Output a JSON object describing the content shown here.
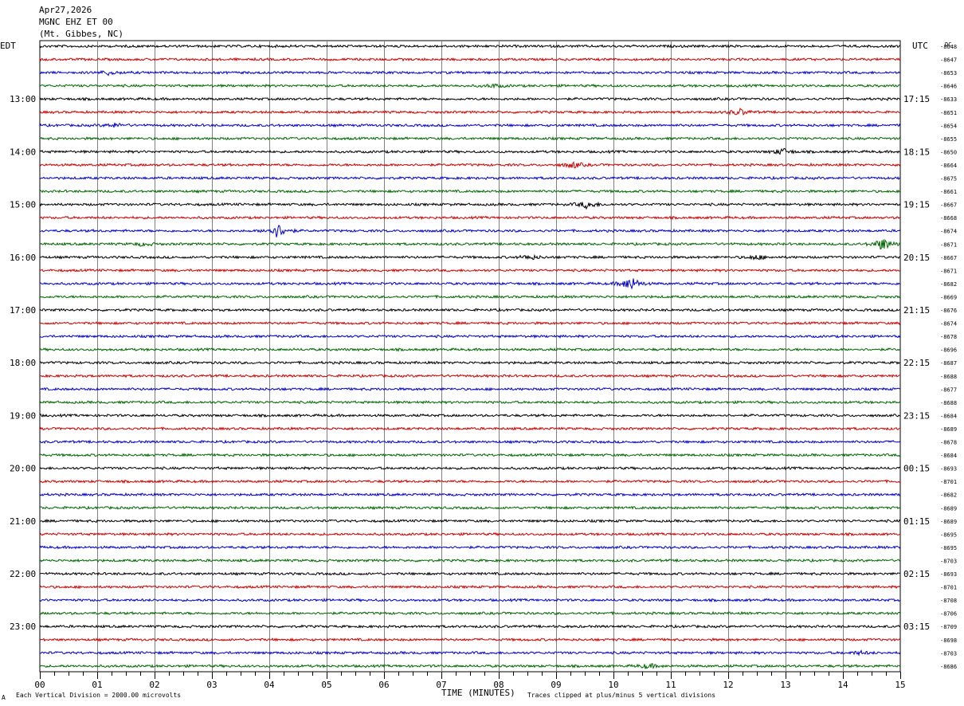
{
  "header": {
    "line1": "Apr27,2026",
    "line2": "MGNC EHZ ET 00",
    "line3": "(Mt. Gibbes, NC)"
  },
  "left_tz": "EDT",
  "right_tz": "UTC",
  "dc_header": "DC",
  "footer": {
    "scale_note": "Each Vertical Division = 2000.00 microvolts",
    "clip_note": "Traces clipped at plus/minus 5 vertical divisions",
    "corner_mark": "A"
  },
  "colors": {
    "cycle": [
      "#000000",
      "#cc0000",
      "#0000cc",
      "#006600"
    ],
    "grid": "#808080"
  },
  "chart_data": {
    "type": "line",
    "xlabel": "TIME (MINUTES)",
    "xlim": [
      0,
      15
    ],
    "x_ticks": [
      "00",
      "01",
      "02",
      "03",
      "04",
      "05",
      "06",
      "07",
      "08",
      "09",
      "10",
      "11",
      "12",
      "13",
      "14",
      "15"
    ],
    "row_count": 48,
    "left_hour_labels": [
      {
        "row": 4,
        "label": "13:00"
      },
      {
        "row": 8,
        "label": "14:00"
      },
      {
        "row": 12,
        "label": "15:00"
      },
      {
        "row": 16,
        "label": "16:00"
      },
      {
        "row": 20,
        "label": "17:00"
      },
      {
        "row": 24,
        "label": "18:00"
      },
      {
        "row": 28,
        "label": "19:00"
      },
      {
        "row": 32,
        "label": "20:00"
      },
      {
        "row": 36,
        "label": "21:00"
      },
      {
        "row": 40,
        "label": "22:00"
      },
      {
        "row": 44,
        "label": "23:00"
      }
    ],
    "right_hour_labels": [
      {
        "row": 4,
        "label": "17:15"
      },
      {
        "row": 8,
        "label": "18:15"
      },
      {
        "row": 12,
        "label": "19:15"
      },
      {
        "row": 16,
        "label": "20:15"
      },
      {
        "row": 20,
        "label": "21:15"
      },
      {
        "row": 24,
        "label": "22:15"
      },
      {
        "row": 28,
        "label": "23:15"
      },
      {
        "row": 32,
        "label": "00:15"
      },
      {
        "row": 36,
        "label": "01:15"
      },
      {
        "row": 40,
        "label": "02:15"
      },
      {
        "row": 44,
        "label": "03:15"
      }
    ],
    "dc_offsets": [
      "-8648",
      "-8647",
      "-8653",
      "-8646",
      "-8633",
      "-8651",
      "-8654",
      "-8655",
      "-8650",
      "-8664",
      "-8675",
      "-8661",
      "-8667",
      "-8668",
      "-8674",
      "-8671",
      "-8667",
      "-8671",
      "-8682",
      "-8669",
      "-8676",
      "-8674",
      "-8678",
      "-8696",
      "-8687",
      "-8688",
      "-8677",
      "-8688",
      "-8684",
      "-8689",
      "-8678",
      "-8684",
      "-8693",
      "-8701",
      "-8682",
      "-8689",
      "-8689",
      "-8695",
      "-8695",
      "-8703",
      "-8693",
      "-8701",
      "-8708",
      "-8706",
      "-8709",
      "-8698",
      "-8703",
      "-8686"
    ],
    "events": [
      {
        "row": 2,
        "minute": 1.2,
        "amp": 2.5
      },
      {
        "row": 3,
        "minute": 7.9,
        "amp": 2
      },
      {
        "row": 5,
        "minute": 12.2,
        "amp": 4
      },
      {
        "row": 6,
        "minute": 1.3,
        "amp": 2.5
      },
      {
        "row": 8,
        "minute": 12.95,
        "amp": 4
      },
      {
        "row": 9,
        "minute": 9.3,
        "amp": 4
      },
      {
        "row": 12,
        "minute": 9.55,
        "amp": 5
      },
      {
        "row": 14,
        "minute": 4.15,
        "amp": 9
      },
      {
        "row": 15,
        "minute": 14.7,
        "amp": 8
      },
      {
        "row": 15,
        "minute": 1.8,
        "amp": 2
      },
      {
        "row": 16,
        "minute": 8.55,
        "amp": 3
      },
      {
        "row": 16,
        "minute": 12.5,
        "amp": 3
      },
      {
        "row": 18,
        "minute": 10.3,
        "amp": 9
      },
      {
        "row": 47,
        "minute": 10.6,
        "amp": 3
      },
      {
        "row": 46,
        "minute": 14.3,
        "amp": 2
      }
    ]
  }
}
